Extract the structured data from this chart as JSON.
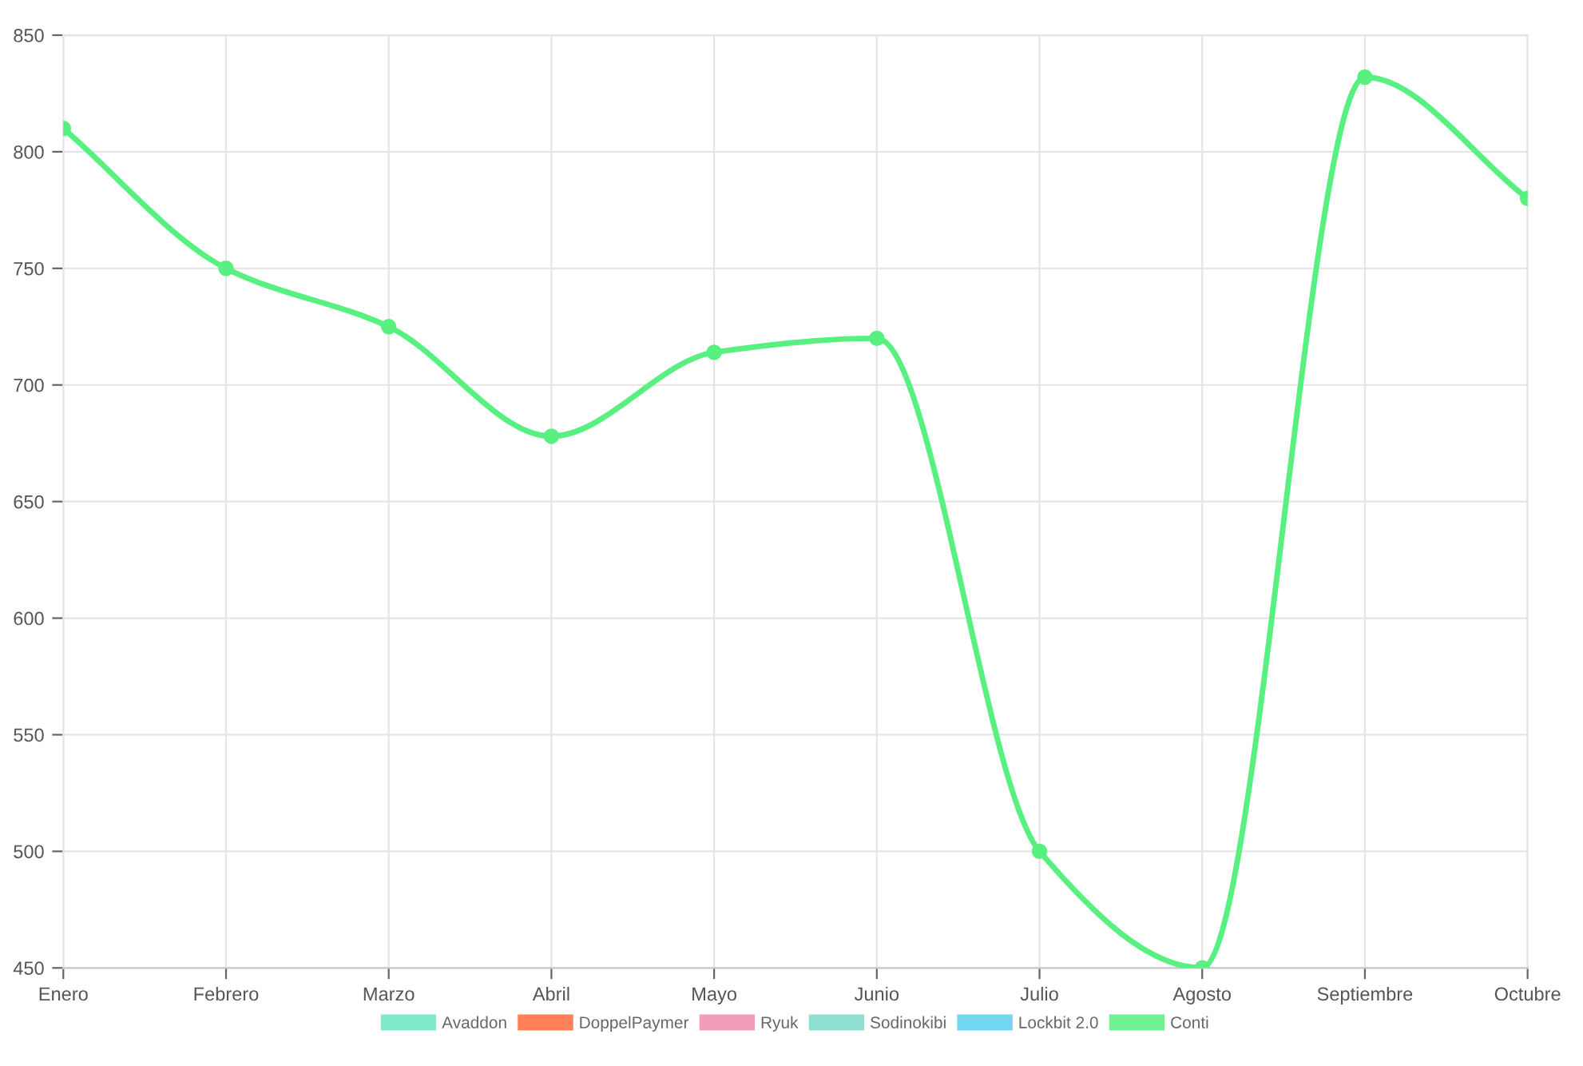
{
  "chart_data": {
    "type": "line",
    "categories": [
      "Enero",
      "Febrero",
      "Marzo",
      "Abril",
      "Mayo",
      "Junio",
      "Julio",
      "Agosto",
      "Septiembre",
      "Octubre"
    ],
    "series": [
      {
        "name": "Avaddon",
        "color": "#6ee6c4",
        "values": [
          null,
          null,
          null,
          null,
          null,
          null,
          null,
          null,
          null,
          null
        ]
      },
      {
        "name": "DoppelPaymer",
        "color": "#ff6a3a",
        "values": [
          null,
          null,
          null,
          null,
          null,
          null,
          null,
          null,
          null,
          null
        ]
      },
      {
        "name": "Ryuk",
        "color": "#f08cb0",
        "values": [
          null,
          null,
          null,
          null,
          null,
          null,
          null,
          null,
          null,
          null
        ]
      },
      {
        "name": "Sodinokibi",
        "color": "#7ddccc",
        "values": [
          null,
          null,
          null,
          null,
          null,
          null,
          null,
          null,
          null,
          null
        ]
      },
      {
        "name": "Lockbit 2.0",
        "color": "#5bd0f0",
        "values": [
          null,
          null,
          null,
          null,
          null,
          null,
          null,
          null,
          null,
          null
        ]
      },
      {
        "name": "Conti",
        "color": "#58f080",
        "values": [
          810,
          750,
          725,
          678,
          714,
          720,
          500,
          450,
          832,
          780
        ]
      }
    ],
    "ylim": [
      450,
      850
    ],
    "yticks": [
      450,
      500,
      550,
      600,
      650,
      700,
      750,
      800,
      850
    ],
    "grid": true,
    "legend": "bottom",
    "marker": "circle",
    "line_style": "solid"
  }
}
